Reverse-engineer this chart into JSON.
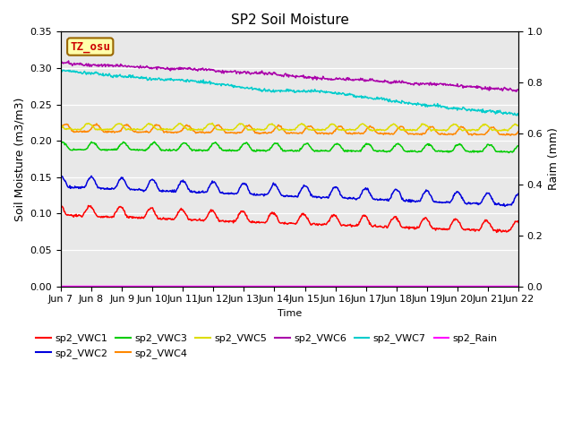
{
  "title": "SP2 Soil Moisture",
  "xlabel": "Time",
  "ylabel_left": "Soil Moisture (m3/m3)",
  "ylabel_right": "Raim (mm)",
  "ylim_left": [
    0.0,
    0.35
  ],
  "ylim_right": [
    0.0,
    1.0
  ],
  "background_color": "#e8e8e8",
  "tz_label": "TZ_osu",
  "legend": [
    {
      "label": "sp2_VWC1",
      "color": "#ff0000"
    },
    {
      "label": "sp2_VWC2",
      "color": "#0000dd"
    },
    {
      "label": "sp2_VWC3",
      "color": "#00cc00"
    },
    {
      "label": "sp2_VWC4",
      "color": "#ff8800"
    },
    {
      "label": "sp2_VWC5",
      "color": "#dddd00"
    },
    {
      "label": "sp2_VWC6",
      "color": "#aa00aa"
    },
    {
      "label": "sp2_VWC7",
      "color": "#00cccc"
    },
    {
      "label": "sp2_Rain",
      "color": "#ff00ff"
    }
  ],
  "xtick_labels": [
    "Jun 7",
    "Jun 8",
    "Jun 9",
    "Jun 10",
    "Jun 11",
    "Jun 12",
    "Jun 13",
    "Jun 14",
    "Jun 15",
    "Jun 16",
    "Jun 17",
    "Jun 18",
    "Jun 19",
    "Jun 20",
    "Jun 21",
    "Jun 22"
  ]
}
